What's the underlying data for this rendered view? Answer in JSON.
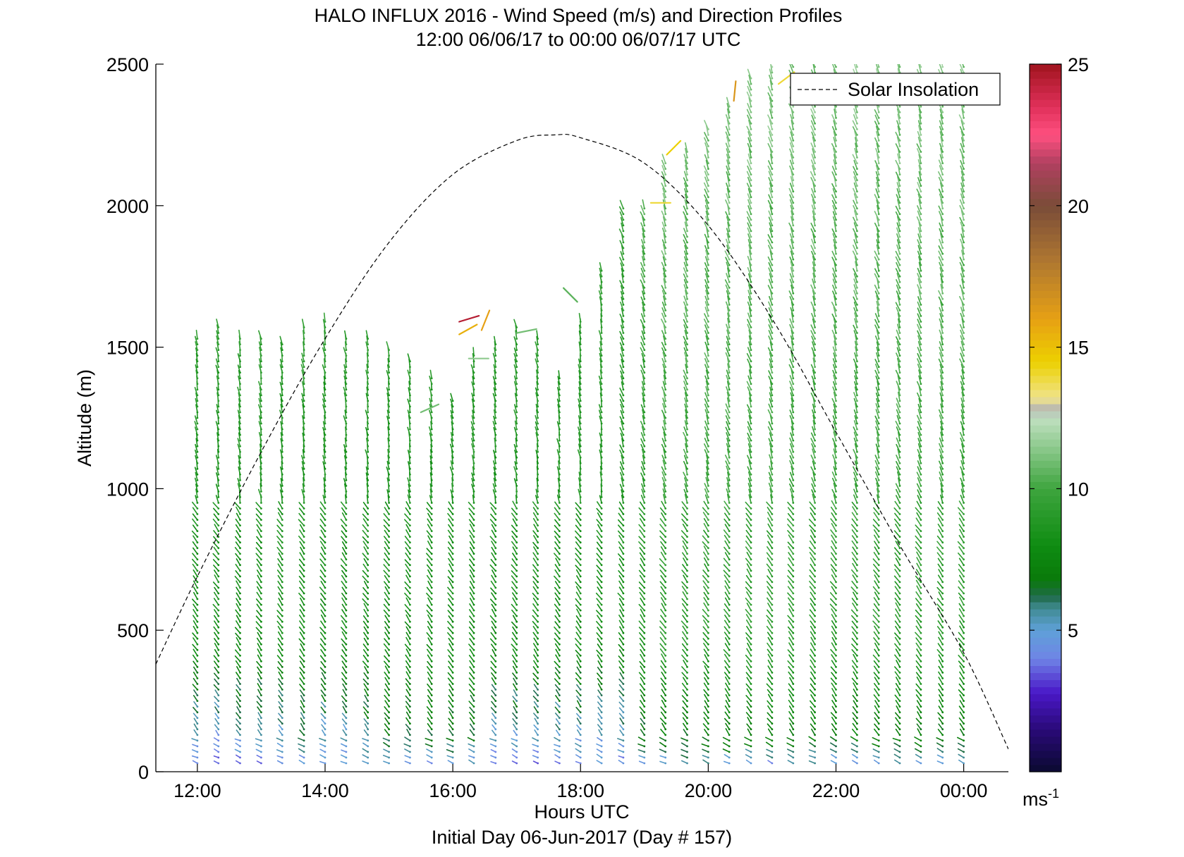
{
  "chart_data": {
    "type": "barbs",
    "title": "HALO INFLUX 2016 - Wind Speed (m/s) and Direction Profiles",
    "subtitle": "12:00 06/06/17 to 00:00 06/07/17  UTC",
    "xlabel": "Hours UTC",
    "ylabel": "Altitude (m)",
    "footer": "Initial Day 06-Jun-2017 (Day # 157)",
    "xlim": [
      11.35,
      24.7
    ],
    "ylim": [
      0,
      2500
    ],
    "xticks": [
      {
        "v": 12,
        "label": "12:00"
      },
      {
        "v": 14,
        "label": "14:00"
      },
      {
        "v": 16,
        "label": "16:00"
      },
      {
        "v": 18,
        "label": "18:00"
      },
      {
        "v": 20,
        "label": "20:00"
      },
      {
        "v": 22,
        "label": "22:00"
      },
      {
        "v": 24,
        "label": "00:00"
      }
    ],
    "yticks": [
      {
        "v": 0,
        "label": "0"
      },
      {
        "v": 500,
        "label": "500"
      },
      {
        "v": 1000,
        "label": "1000"
      },
      {
        "v": 1500,
        "label": "1500"
      },
      {
        "v": 2000,
        "label": "2000"
      },
      {
        "v": 2500,
        "label": "2500"
      }
    ],
    "legend": {
      "label": "Solar Insolation",
      "placement": "top-right"
    },
    "colorbar": {
      "range": [
        0,
        25
      ],
      "ticks": [
        {
          "v": 5,
          "label": "5"
        },
        {
          "v": 10,
          "label": "10"
        },
        {
          "v": 15,
          "label": "15"
        },
        {
          "v": 20,
          "label": "20"
        },
        {
          "v": 25,
          "label": "25"
        }
      ],
      "unit": "ms",
      "unit_exp": "-1",
      "stops": [
        {
          "v": 0,
          "c": "#0a0a30"
        },
        {
          "v": 1.5,
          "c": "#2a0a78"
        },
        {
          "v": 2.8,
          "c": "#4a18c8"
        },
        {
          "v": 4.0,
          "c": "#6f84e6"
        },
        {
          "v": 5.0,
          "c": "#5fa0d8"
        },
        {
          "v": 5.8,
          "c": "#3f8a90"
        },
        {
          "v": 6.2,
          "c": "#1f6a48"
        },
        {
          "v": 6.8,
          "c": "#0a7a0a"
        },
        {
          "v": 8.0,
          "c": "#0f8c12"
        },
        {
          "v": 10.0,
          "c": "#3ea53e"
        },
        {
          "v": 11.5,
          "c": "#8fca8f"
        },
        {
          "v": 12.5,
          "c": "#c0e0c0"
        },
        {
          "v": 12.8,
          "c": "#b4b4b4"
        },
        {
          "v": 13.2,
          "c": "#f0e48c"
        },
        {
          "v": 14.5,
          "c": "#ecd000"
        },
        {
          "v": 16.0,
          "c": "#e6a014"
        },
        {
          "v": 18.0,
          "c": "#b07830"
        },
        {
          "v": 20.0,
          "c": "#7a4c38"
        },
        {
          "v": 21.5,
          "c": "#b04060"
        },
        {
          "v": 22.5,
          "c": "#ff5080"
        },
        {
          "v": 23.5,
          "c": "#e0305a"
        },
        {
          "v": 25.0,
          "c": "#a0141e"
        }
      ]
    },
    "solar_insolation": {
      "x": [
        11.35,
        12.0,
        13.0,
        14.0,
        15.0,
        16.0,
        17.0,
        17.6,
        18.0,
        19.0,
        20.0,
        21.0,
        22.0,
        23.0,
        24.0,
        24.7
      ],
      "y": [
        380,
        690,
        1130,
        1530,
        1870,
        2110,
        2230,
        2250,
        2240,
        2150,
        1930,
        1600,
        1200,
        800,
        420,
        80
      ]
    },
    "profiles": [
      {
        "t": 12.0,
        "top": 1530,
        "lowSpd": [
          3.5,
          5.0,
          8.0
        ]
      },
      {
        "t": 12.33,
        "top": 1570,
        "lowSpd": [
          3.5,
          4.5,
          8.0
        ]
      },
      {
        "t": 12.67,
        "top": 1530,
        "lowSpd": [
          3.5,
          5.0,
          8.0
        ]
      },
      {
        "t": 13.0,
        "top": 1540,
        "lowSpd": [
          3.5,
          5.0,
          8.0
        ]
      },
      {
        "t": 13.33,
        "top": 1520,
        "lowSpd": [
          4.0,
          5.0,
          8.0
        ]
      },
      {
        "t": 13.67,
        "top": 1580,
        "lowSpd": [
          4.0,
          6.0,
          8.0
        ]
      },
      {
        "t": 14.0,
        "top": 1600,
        "lowSpd": [
          4.0,
          5.0,
          8.0
        ]
      },
      {
        "t": 14.33,
        "top": 1540,
        "lowSpd": [
          4.0,
          5.0,
          8.0
        ]
      },
      {
        "t": 14.67,
        "top": 1530,
        "lowSpd": [
          4.0,
          6.0,
          8.0
        ]
      },
      {
        "t": 15.0,
        "top": 1500,
        "lowSpd": [
          4.0,
          6.5,
          8.0
        ]
      },
      {
        "t": 15.33,
        "top": 1450,
        "lowSpd": [
          4.0,
          6.5,
          8.0
        ]
      },
      {
        "t": 15.67,
        "top": 1400,
        "lowSpd": [
          4.0,
          6.5,
          8.0
        ]
      },
      {
        "t": 16.0,
        "top": 1310,
        "lowSpd": [
          4.0,
          6.5,
          8.0
        ]
      },
      {
        "t": 16.33,
        "top": 1470,
        "lowSpd": [
          4.0,
          6.5,
          8.0
        ]
      },
      {
        "t": 16.67,
        "top": 1520,
        "lowSpd": [
          4.0,
          5.0,
          8.0
        ]
      },
      {
        "t": 17.0,
        "top": 1580,
        "lowSpd": [
          3.5,
          5.0,
          8.0
        ]
      },
      {
        "t": 17.33,
        "top": 1530,
        "lowSpd": [
          3.5,
          5.0,
          8.0
        ]
      },
      {
        "t": 17.67,
        "top": 1400,
        "lowSpd": [
          4.0,
          5.0,
          8.0
        ]
      },
      {
        "t": 18.0,
        "top": 1600,
        "lowSpd": [
          4.0,
          5.0,
          8.0
        ]
      },
      {
        "t": 18.33,
        "top": 1770,
        "lowSpd": [
          4.0,
          5.0,
          8.0
        ]
      },
      {
        "t": 18.67,
        "top": 1990,
        "lowSpd": [
          4.0,
          5.0,
          8.0
        ]
      },
      {
        "t": 19.0,
        "top": 2000,
        "lowSpd": [
          4.0,
          6.5,
          8.5
        ]
      },
      {
        "t": 19.33,
        "top": 2150,
        "lowSpd": [
          4.0,
          7.0,
          9.0
        ]
      },
      {
        "t": 19.67,
        "top": 2200,
        "lowSpd": [
          4.5,
          7.0,
          9.0
        ]
      },
      {
        "t": 20.0,
        "top": 2270,
        "lowSpd": [
          4.5,
          7.0,
          9.0
        ]
      },
      {
        "t": 20.33,
        "top": 2350,
        "lowSpd": [
          4.5,
          7.0,
          9.0
        ]
      },
      {
        "t": 20.67,
        "top": 2450,
        "lowSpd": [
          4.5,
          7.0,
          9.0
        ]
      },
      {
        "t": 21.0,
        "top": 2500,
        "lowSpd": [
          3.5,
          7.0,
          9.0
        ]
      },
      {
        "t": 21.33,
        "top": 2500,
        "lowSpd": [
          4.5,
          7.0,
          9.0
        ]
      },
      {
        "t": 21.67,
        "top": 2500,
        "lowSpd": [
          4.5,
          7.0,
          9.0
        ]
      },
      {
        "t": 22.0,
        "top": 2500,
        "lowSpd": [
          3.5,
          7.0,
          9.0
        ]
      },
      {
        "t": 22.33,
        "top": 2500,
        "lowSpd": [
          3.5,
          7.0,
          9.0
        ]
      },
      {
        "t": 22.67,
        "top": 2500,
        "lowSpd": [
          4.5,
          7.0,
          9.0
        ]
      },
      {
        "t": 23.0,
        "top": 2500,
        "lowSpd": [
          4.5,
          7.0,
          9.0
        ]
      },
      {
        "t": 23.33,
        "top": 2500,
        "lowSpd": [
          4.5,
          7.0,
          9.0
        ]
      },
      {
        "t": 23.67,
        "top": 2500,
        "lowSpd": [
          4.0,
          7.0,
          9.0
        ]
      },
      {
        "t": 24.0,
        "top": 2500,
        "lowSpd": [
          3.5,
          7.0,
          9.0
        ]
      }
    ],
    "outliers": [
      {
        "t": 16.1,
        "z": 1590,
        "spd": 24.5,
        "dx": 1.0,
        "dy": 0.3
      },
      {
        "t": 16.1,
        "z": 1545,
        "spd": 15.5,
        "dx": 0.9,
        "dy": 0.5
      },
      {
        "t": 16.45,
        "z": 1560,
        "spd": 16.0,
        "dx": 0.4,
        "dy": 1.0
      },
      {
        "t": 16.25,
        "z": 1460,
        "spd": 11.5,
        "dx": 1.0,
        "dy": 0.0
      },
      {
        "t": 15.5,
        "z": 1270,
        "spd": 11.0,
        "dx": 0.9,
        "dy": 0.4
      },
      {
        "t": 17.0,
        "z": 1550,
        "spd": 11.0,
        "dx": 1.0,
        "dy": 0.2
      },
      {
        "t": 19.1,
        "z": 2010,
        "spd": 14.0,
        "dx": 1.0,
        "dy": 0.0
      },
      {
        "t": 19.35,
        "z": 2180,
        "spd": 14.5,
        "dx": 0.7,
        "dy": 0.7
      },
      {
        "t": 20.4,
        "z": 2370,
        "spd": 16.5,
        "dx": 0.1,
        "dy": 1.0
      },
      {
        "t": 21.1,
        "z": 2430,
        "spd": 14.0,
        "dx": 0.8,
        "dy": 0.6
      },
      {
        "t": 17.95,
        "z": 1660,
        "spd": 10.5,
        "dx": -0.7,
        "dy": 0.7
      }
    ]
  }
}
